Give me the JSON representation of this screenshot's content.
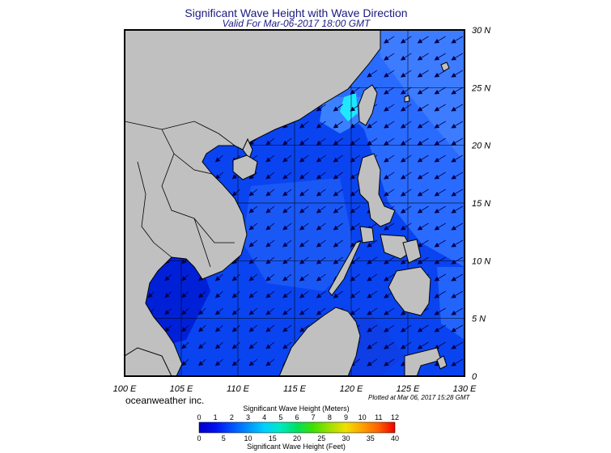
{
  "title": "Significant Wave Height with Wave Direction",
  "subtitle": "Valid For Mar-06-2017 18:00 GMT",
  "credit": "oceanweather inc.",
  "plotted": "Plotted at Mar 06, 2017 15:28 GMT",
  "map": {
    "lon_range": [
      100,
      130
    ],
    "lat_range": [
      0,
      30
    ],
    "lon_labels": [
      "100 E",
      "105 E",
      "110 E",
      "115 E",
      "120 E",
      "125 E",
      "130 E"
    ],
    "lat_labels": [
      "0",
      "5 N",
      "10 N",
      "15 N",
      "20 N",
      "25 N",
      "30 N"
    ],
    "grid": true,
    "land_color": "#c0c0c0",
    "wave_direction": "from northeast (arrows point southwest)"
  },
  "colorbar": {
    "meters_title": "Significant Wave Height (Meters)",
    "feet_title": "Significant Wave Height (Feet)",
    "meters_ticks": [
      "0",
      "1",
      "2",
      "3",
      "4",
      "5",
      "6",
      "7",
      "8",
      "9",
      "10",
      "11",
      "12"
    ],
    "feet_ticks": [
      "0",
      "5",
      "10",
      "15",
      "20",
      "25",
      "30",
      "35",
      "40"
    ],
    "colors": [
      "#0000c8",
      "#0010f0",
      "#0050ff",
      "#0090ff",
      "#00d0ff",
      "#00e8c0",
      "#00e060",
      "#40e000",
      "#a0e000",
      "#f0e000",
      "#ffa000",
      "#ff6000",
      "#f00000"
    ]
  }
}
